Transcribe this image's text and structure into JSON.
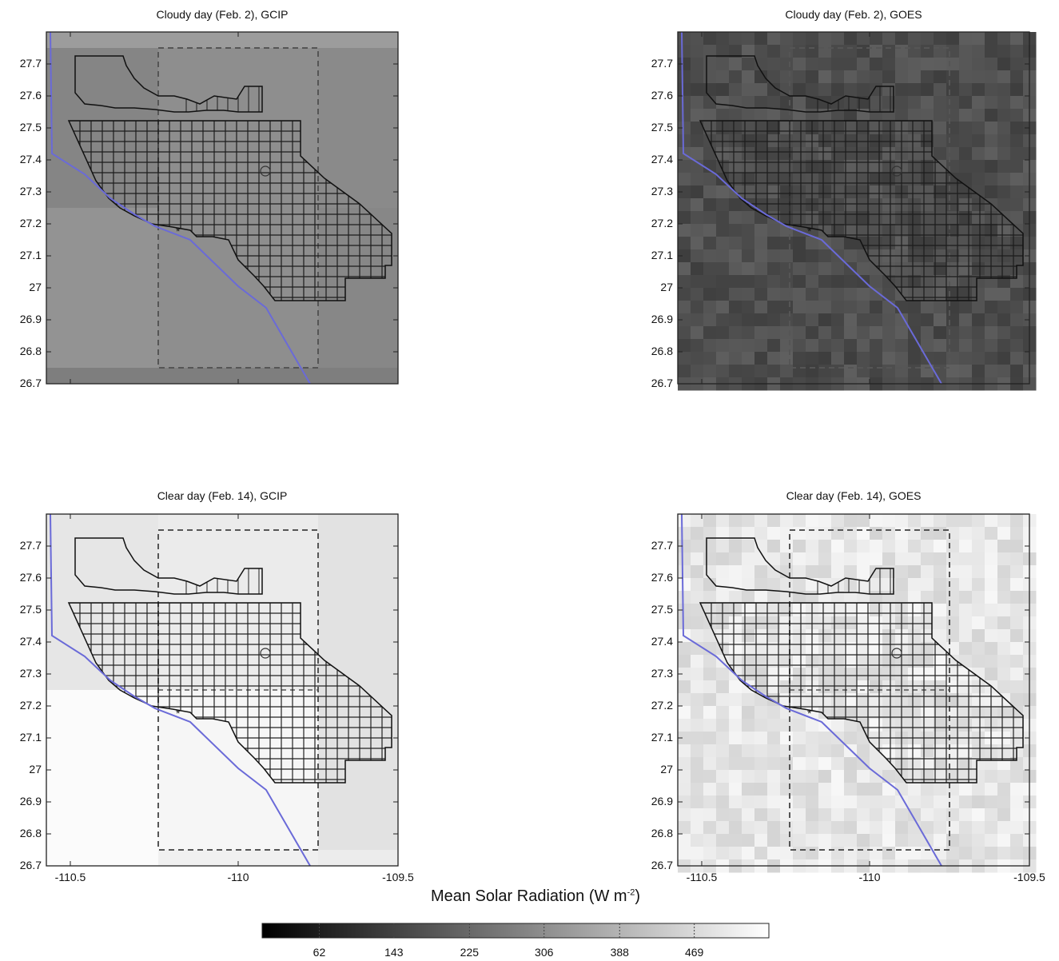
{
  "panels": [
    {
      "title": "Cloudy day (Feb. 2), GCIP",
      "mode": "gcip",
      "tone": "dark"
    },
    {
      "title": "Cloudy day (Feb. 2), GOES",
      "mode": "goes",
      "tone": "dark"
    },
    {
      "title": "Clear day (Feb. 14), GCIP",
      "mode": "gcip",
      "tone": "light"
    },
    {
      "title": "Clear day (Feb. 14), GOES",
      "mode": "goes",
      "tone": "light"
    }
  ],
  "y_ticks": [
    "27.7",
    "27.6",
    "27.5",
    "27.4",
    "27.3",
    "27.2",
    "27.1",
    "27",
    "26.9",
    "26.8",
    "26.7"
  ],
  "x_ticks": [
    "-110.5",
    "-110",
    "-109.5"
  ],
  "colorbar": {
    "title": "Mean Solar Radiation (W m",
    "title_sup": "-2",
    "title_end": ")",
    "ticks": [
      "62",
      "143",
      "225",
      "306",
      "388",
      "469"
    ],
    "range": [
      0,
      550
    ]
  },
  "colors": {
    "coast": "#6a6ad8",
    "outline": "#111111",
    "box": "#555555"
  }
}
